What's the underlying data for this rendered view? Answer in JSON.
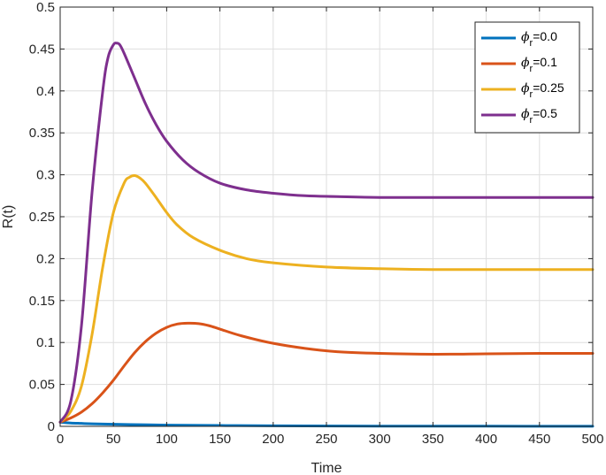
{
  "chart_data": {
    "type": "line",
    "title": "",
    "xlabel": "Time",
    "ylabel": "R(t)",
    "xlim": [
      0,
      500
    ],
    "ylim": [
      0,
      0.5
    ],
    "xticks": [
      0,
      50,
      100,
      150,
      200,
      250,
      300,
      350,
      400,
      450,
      500
    ],
    "xtick_labels": [
      "0",
      "50",
      "100",
      "150",
      "200",
      "250",
      "300",
      "350",
      "400",
      "450",
      "500"
    ],
    "yticks": [
      0,
      0.05,
      0.1,
      0.15,
      0.2,
      0.25,
      0.3,
      0.35,
      0.4,
      0.45,
      0.5
    ],
    "ytick_labels": [
      "0",
      "0.05",
      "0.1",
      "0.15",
      "0.2",
      "0.25",
      "0.3",
      "0.35",
      "0.4",
      "0.45",
      "0.5"
    ],
    "grid": true,
    "legend_position": "top-right",
    "series": [
      {
        "name": "φ_r=0.0",
        "legend_symbol": "ϕ",
        "legend_sub": "r",
        "legend_value": "=0.0",
        "color": "#0072BD",
        "x": [
          0,
          10,
          20,
          30,
          50,
          75,
          100,
          150,
          200,
          300,
          400,
          500
        ],
        "y": [
          0.005,
          0.004,
          0.0035,
          0.003,
          0.0025,
          0.002,
          0.0015,
          0.001,
          0.0006,
          0.0003,
          0.0002,
          0.0001
        ]
      },
      {
        "name": "φ_r=0.1",
        "legend_symbol": "ϕ",
        "legend_sub": "r",
        "legend_value": "=0.1",
        "color": "#D95319",
        "x": [
          0,
          10,
          20,
          30,
          40,
          50,
          60,
          70,
          80,
          90,
          100,
          110,
          120,
          130,
          140,
          150,
          170,
          200,
          230,
          260,
          300,
          350,
          400,
          450,
          500
        ],
        "y": [
          0.005,
          0.01,
          0.017,
          0.027,
          0.04,
          0.055,
          0.072,
          0.088,
          0.101,
          0.111,
          0.118,
          0.122,
          0.123,
          0.1225,
          0.12,
          0.116,
          0.108,
          0.099,
          0.093,
          0.089,
          0.087,
          0.086,
          0.0865,
          0.087,
          0.087
        ]
      },
      {
        "name": "φ_r=0.25",
        "legend_symbol": "ϕ",
        "legend_sub": "r",
        "legend_value": "=0.25",
        "color": "#EDB120",
        "x": [
          0,
          10,
          20,
          30,
          40,
          50,
          60,
          65,
          70,
          75,
          80,
          90,
          100,
          110,
          125,
          150,
          175,
          200,
          250,
          300,
          350,
          400,
          450,
          500
        ],
        "y": [
          0.005,
          0.018,
          0.048,
          0.11,
          0.19,
          0.255,
          0.29,
          0.297,
          0.299,
          0.296,
          0.29,
          0.273,
          0.255,
          0.24,
          0.225,
          0.21,
          0.2,
          0.195,
          0.19,
          0.188,
          0.187,
          0.187,
          0.187,
          0.187
        ]
      },
      {
        "name": "φ_r=0.5",
        "legend_symbol": "ϕ",
        "legend_sub": "r",
        "legend_value": "=0.5",
        "color": "#7E2F8E",
        "x": [
          0,
          10,
          20,
          30,
          40,
          45,
          50,
          53,
          56,
          60,
          70,
          80,
          90,
          100,
          115,
          130,
          150,
          175,
          200,
          230,
          260,
          300,
          350,
          400,
          450,
          500
        ],
        "y": [
          0.005,
          0.03,
          0.12,
          0.28,
          0.4,
          0.44,
          0.455,
          0.457,
          0.455,
          0.445,
          0.415,
          0.385,
          0.36,
          0.34,
          0.318,
          0.303,
          0.29,
          0.282,
          0.278,
          0.275,
          0.274,
          0.273,
          0.273,
          0.273,
          0.273,
          0.273
        ]
      }
    ]
  }
}
